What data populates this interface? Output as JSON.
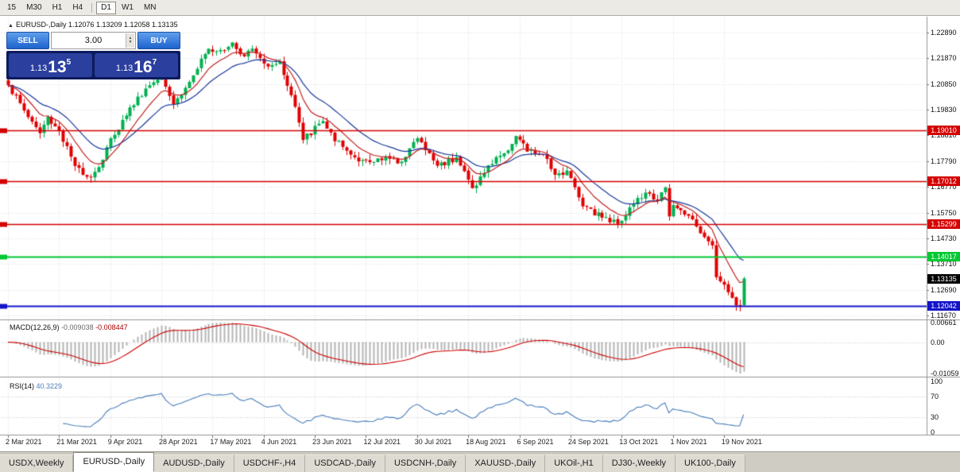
{
  "toolbar": {
    "timeframes": [
      {
        "label": "15"
      },
      {
        "label": "M30"
      },
      {
        "label": "H1"
      },
      {
        "label": "H4"
      },
      {
        "sep": true
      },
      {
        "label": "D1",
        "active": true
      },
      {
        "label": "W1"
      },
      {
        "label": "MN"
      }
    ]
  },
  "chart": {
    "symbol_header": "EURUSD-,Daily 1.12076 1.13209 1.12058 1.13135"
  },
  "trade_panel": {
    "sell_label": "SELL",
    "buy_label": "BUY",
    "volume": "3.00",
    "sell_price": {
      "big": "1.13",
      "pips": "13",
      "pt": "5"
    },
    "buy_price": {
      "big": "1.13",
      "pips": "16",
      "pt": "7"
    }
  },
  "tabs": [
    {
      "label": "USDX,Weekly"
    },
    {
      "label": "EURUSD-,Daily",
      "active": true
    },
    {
      "label": "AUDUSD-,Daily"
    },
    {
      "label": "USDCHF-,H4"
    },
    {
      "label": "USDCAD-,Daily"
    },
    {
      "label": "USDCNH-,Daily"
    },
    {
      "label": "XAUUSD-,Daily"
    },
    {
      "label": "UKOil-,H1"
    },
    {
      "label": "DJ30-,Weekly"
    },
    {
      "label": "UK100-,Daily"
    }
  ],
  "chart_data": {
    "type": "candlestick",
    "symbol": "EURUSD-",
    "timeframe": "Daily",
    "ohlc_header": {
      "open": "1.12076",
      "high": "1.13209",
      "low": "1.12058",
      "close": "1.13135"
    },
    "y_ticks": [
      "1.22890",
      "1.21870",
      "1.20850",
      "1.19830",
      "1.18810",
      "1.17790",
      "1.16770",
      "1.15750",
      "1.14730",
      "1.13710",
      "1.12690",
      "1.11670"
    ],
    "x_labels": [
      "2 Mar 2021",
      "21 Mar 2021",
      "9 Apr 2021",
      "28 Apr 2021",
      "17 May 2021",
      "4 Jun 2021",
      "23 Jun 2021",
      "12 Jul 2021",
      "30 Jul 2021",
      "18 Aug 2021",
      "6 Sep 2021",
      "24 Sep 2021",
      "13 Oct 2021",
      "1 Nov 2021",
      "19 Nov 2021"
    ],
    "bars_total": 188,
    "bars_per_x_label": 13,
    "close_anchors": [
      [
        0,
        1.208
      ],
      [
        4,
        1.198
      ],
      [
        8,
        1.189
      ],
      [
        10,
        1.1955
      ],
      [
        13,
        1.19
      ],
      [
        17,
        1.176
      ],
      [
        21,
        1.1715
      ],
      [
        24,
        1.1785
      ],
      [
        26,
        1.187
      ],
      [
        30,
        1.196
      ],
      [
        33,
        1.2035
      ],
      [
        36,
        1.208
      ],
      [
        39,
        1.2125
      ],
      [
        42,
        1.2005
      ],
      [
        45,
        1.207
      ],
      [
        48,
        1.2145
      ],
      [
        51,
        1.2225
      ],
      [
        54,
        1.222
      ],
      [
        57,
        1.225
      ],
      [
        60,
        1.2195
      ],
      [
        62,
        1.2225
      ],
      [
        65,
        1.2166
      ],
      [
        69,
        1.2174
      ],
      [
        73,
        1.1995
      ],
      [
        75,
        1.1863
      ],
      [
        80,
        1.1938
      ],
      [
        83,
        1.1858
      ],
      [
        87,
        1.1805
      ],
      [
        92,
        1.1775
      ],
      [
        96,
        1.1798
      ],
      [
        99,
        1.177
      ],
      [
        104,
        1.187
      ],
      [
        109,
        1.1761
      ],
      [
        114,
        1.1795
      ],
      [
        118,
        1.1672
      ],
      [
        124,
        1.1795
      ],
      [
        126,
        1.181
      ],
      [
        129,
        1.1879
      ],
      [
        132,
        1.1817
      ],
      [
        136,
        1.1805
      ],
      [
        139,
        1.1725
      ],
      [
        142,
        1.1742
      ],
      [
        146,
        1.16
      ],
      [
        148,
        1.159
      ],
      [
        151,
        1.1555
      ],
      [
        155,
        1.153
      ],
      [
        160,
        1.1633
      ],
      [
        163,
        1.165
      ],
      [
        165,
        1.162
      ],
      [
        167,
        1.1675
      ],
      [
        168,
        1.156
      ],
      [
        169,
        1.1605
      ],
      [
        172,
        1.1567
      ],
      [
        175,
        1.152
      ],
      [
        177,
        1.1478
      ],
      [
        179,
        1.1445
      ],
      [
        180,
        1.1319
      ],
      [
        182,
        1.1289
      ],
      [
        184,
        1.1237
      ],
      [
        186,
        1.1205
      ],
      [
        187,
        1.13135
      ]
    ],
    "last_bar": {
      "open": 1.12076,
      "high": 1.13209,
      "low": 1.12058,
      "close": 1.13135
    },
    "levels": [
      {
        "price": 1.1901,
        "label": "1.19010",
        "color": "#d40000"
      },
      {
        "price": 1.17012,
        "label": "1.17012",
        "color": "#d40000"
      },
      {
        "price": 1.15299,
        "label": "1.15299",
        "color": "#d40000"
      },
      {
        "price": 1.14017,
        "label": "1.14017",
        "color": "#00c832"
      },
      {
        "price": 1.12042,
        "label": "1.12042",
        "color": "#1414c8"
      }
    ],
    "current_price": {
      "price": 1.13135,
      "label": "1.13135",
      "color": "#000000"
    },
    "up_color": "#00b050",
    "down_color": "#e00000",
    "ma_fast_color": "#c32222",
    "ma_slow_color": "#1a3a9e",
    "macd": {
      "label": "MACD(12,26,9)",
      "main_value": "-0.009038",
      "signal_value": "-0.008447",
      "axis": [
        "0.00661",
        "0.00",
        "-0.01059"
      ],
      "hist_color": "#b4b4b4",
      "signal_color": "#cc0000"
    },
    "rsi": {
      "label": "RSI(14)",
      "value": "40.3229",
      "axis": [
        "100",
        "70",
        "30",
        "0"
      ],
      "line_color": "#4a7ebb"
    }
  }
}
